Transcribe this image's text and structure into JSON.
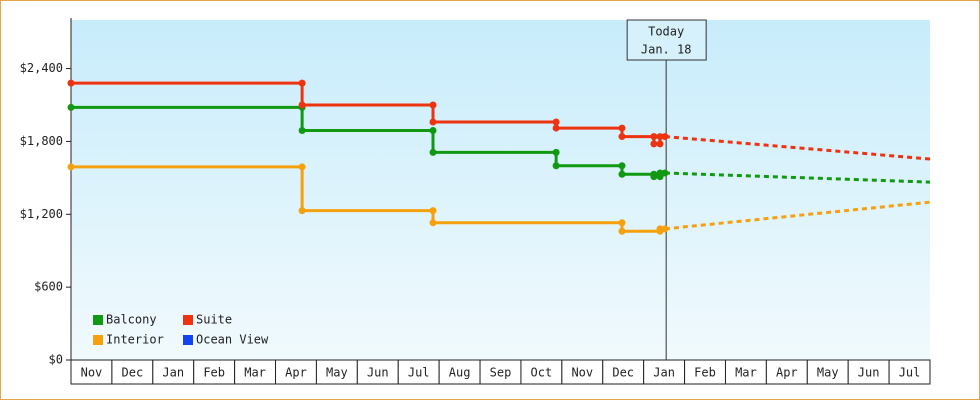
{
  "chart_data": {
    "type": "step-line",
    "categories": [
      "Nov",
      "Dec",
      "Jan",
      "Feb",
      "Mar",
      "Apr",
      "May",
      "Jun",
      "Jul",
      "Aug",
      "Sep",
      "Oct",
      "Nov",
      "Dec",
      "Jan",
      "Feb",
      "Mar",
      "Apr",
      "May",
      "Jun",
      "Jul"
    ],
    "xlim": [
      0,
      21
    ],
    "ylim": [
      0,
      2800
    ],
    "yticks": [
      {
        "value": 0,
        "label": "$0"
      },
      {
        "value": 600,
        "label": "$600"
      },
      {
        "value": 1200,
        "label": "$1,200"
      },
      {
        "value": 1800,
        "label": "$1,800"
      },
      {
        "value": 2400,
        "label": "$2,400"
      }
    ],
    "today": {
      "x": 14.55,
      "label": "Today",
      "date": "Jan. 18"
    },
    "series": [
      {
        "name": "Balcony",
        "color": "#119911",
        "x": [
          0,
          5.65,
          5.65,
          8.85,
          8.85,
          11.86,
          11.86,
          13.47,
          13.47,
          14.25,
          14.25,
          14.4,
          14.4,
          14.52
        ],
        "values": [
          2080,
          2080,
          1890,
          1890,
          1710,
          1710,
          1600,
          1600,
          1530,
          1530,
          1510,
          1510,
          1540,
          1540
        ],
        "forecast": {
          "x": [
            14.52,
            21
          ],
          "values": [
            1540,
            1465
          ]
        }
      },
      {
        "name": "Suite",
        "color": "#ee3311",
        "x": [
          0,
          5.65,
          5.65,
          8.85,
          8.85,
          11.86,
          11.86,
          13.47,
          13.47,
          14.25,
          14.25,
          14.4,
          14.4,
          14.52
        ],
        "values": [
          2280,
          2280,
          2100,
          2100,
          1960,
          1960,
          1910,
          1910,
          1840,
          1840,
          1780,
          1780,
          1840,
          1840
        ],
        "forecast": {
          "x": [
            14.52,
            21
          ],
          "values": [
            1840,
            1655
          ]
        }
      },
      {
        "name": "Interior",
        "color": "#f5a10e",
        "x": [
          0,
          5.65,
          5.65,
          8.85,
          8.85,
          13.47,
          13.47,
          14.4,
          14.4,
          14.52
        ],
        "values": [
          1590,
          1590,
          1230,
          1230,
          1130,
          1130,
          1060,
          1060,
          1080,
          1080
        ],
        "forecast": {
          "x": [
            14.52,
            21
          ],
          "values": [
            1080,
            1300
          ]
        }
      },
      {
        "name": "Ocean View",
        "color": "#1144ee",
        "x": [],
        "values": []
      }
    ]
  }
}
